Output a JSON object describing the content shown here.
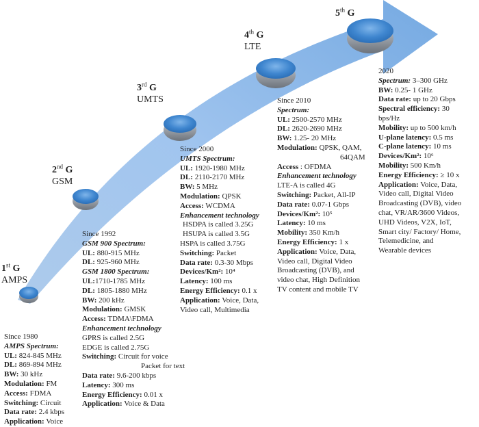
{
  "generations": [
    {
      "num": "1",
      "suffix": "st",
      "g": "G",
      "tech": "AMPS",
      "since": "Since 1980",
      "lines": [
        {
          "i": "AMPS Spectrum:"
        },
        {
          "l": "UL:",
          "v": " 824-845 MHz"
        },
        {
          "l": "DL:",
          "v": " 869-894 MHz"
        },
        {
          "l": "BW:",
          "v": " 30 kHz"
        },
        {
          "l": "Modulation:",
          "v": " FM"
        },
        {
          "l": "Access:",
          "v": " FDMA"
        },
        {
          "l": "Switching:",
          "v": " Circuit"
        },
        {
          "l": "Data rate:",
          "v": " 2.4 kbps"
        },
        {
          "l": "Application:",
          "v": " Voice"
        }
      ]
    },
    {
      "num": "2",
      "suffix": "nd",
      "g": "G",
      "tech": "GSM",
      "since": "Since 1992",
      "lines": [
        {
          "i": "GSM 900 Spectrum:"
        },
        {
          "l": "UL:",
          "v": " 880-915 MHz"
        },
        {
          "l": "DL:",
          "v": " 925-960 MHz"
        },
        {
          "i": "GSM 1800 Spectrum:"
        },
        {
          "l": "UL:",
          "v": "1710-1785 MHz"
        },
        {
          "l": "DL:",
          "v": " 1805-1880 MHz"
        },
        {
          "l": "BW:",
          "v": " 200 kHz"
        },
        {
          "l": "Modulation:",
          "v": " GMSK"
        },
        {
          "l": "Access:",
          "v": " TDMA\\FDMA"
        },
        {
          "i": "Enhancement technology"
        },
        {
          "t": "GPRS is called 2.5G"
        },
        {
          "t": "EDGE is called 2.75G"
        },
        {
          "l": "Switching:",
          "v": " Circuit for voice"
        },
        {
          "t": "Packet for text",
          "pad": 86
        },
        {
          "l": "Data rate:",
          "v": " 9.6-200 kbps"
        },
        {
          "l": "Latency:",
          "v": " 300 ms"
        },
        {
          "l": "Energy Efficiency:",
          "v": " 0.01 x"
        },
        {
          "l": "Application:",
          "v": " Voice & Data"
        }
      ]
    },
    {
      "num": "3",
      "suffix": "rd",
      "g": "G",
      "tech": "UMTS",
      "since": "Since 2000",
      "lines": [
        {
          "i": "UMTS Spectrum:"
        },
        {
          "l": "UL:",
          "v": " 1920-1980 MHz"
        },
        {
          "l": "DL:",
          "v": " 2110-2170 MHz"
        },
        {
          "l": "BW:",
          "v": " 5 MHz"
        },
        {
          "l": "Modulation:",
          "v": " QPSK"
        },
        {
          "l": "Access:",
          "v": " WCDMA"
        },
        {
          "i": "Enhancement technology"
        },
        {
          "t": "HSDPA is called 3.25G",
          "pad": 4
        },
        {
          "t": "HSUPA is called 3.5G",
          "pad": 4
        },
        {
          "t": "HSPA is called 3.75G"
        },
        {
          "l": "Switching:",
          "v": " Packet"
        },
        {
          "l": "Data rate:",
          "v": " 0.3-30 Mbps"
        },
        {
          "l": "Devices/Km²:",
          "v": " 10⁴"
        },
        {
          "l": "Latency:",
          "v": " 100 ms"
        },
        {
          "l": "Energy Efficiency:",
          "v": " 0.1 x"
        },
        {
          "l": "Application:",
          "v": " Voice, Data,"
        },
        {
          "t": "Video call, Multimedia"
        }
      ]
    },
    {
      "num": "4",
      "suffix": "th",
      "g": "G",
      "tech": "LTE",
      "since": "Since 2010",
      "lines": [
        {
          "i": "Spectrum:"
        },
        {
          "l": "UL:",
          "v": " 2500-2570 MHz"
        },
        {
          "l": "DL:",
          "v": " 2620-2690 MHz"
        },
        {
          "l": "BW:",
          "v": " 1.25- 20 MHz"
        },
        {
          "l": "Modulation:",
          "v": " QPSK, QAM,"
        },
        {
          "t": "64QAM",
          "pad": 92
        },
        {
          "l": "Access",
          "v": " : OFDMA"
        },
        {
          "i": "Enhancement technology"
        },
        {
          "t": "LTE-A is called 4G"
        },
        {
          "l": "Switching:",
          "v": " Packet, All-IP"
        },
        {
          "l": "Data rate:",
          "v": " 0.07-1 Gbps"
        },
        {
          "l": "Devices/Km²:",
          "v": " 10⁵"
        },
        {
          "l": "Latency:",
          "v": " 10 ms"
        },
        {
          "l": "Mobility:",
          "v": " 350 Km/h"
        },
        {
          "l": "Energy Efficiency:",
          "v": " 1 x"
        },
        {
          "l": "Application:",
          "v": " Voice, Data,"
        },
        {
          "t": "Video call, Digital Video"
        },
        {
          "t": "Broadcasting (DVB), and"
        },
        {
          "t": "video chat, High Definition"
        },
        {
          "t": "TV content and mobile TV"
        }
      ]
    },
    {
      "num": "5",
      "suffix": "th",
      "g": "G",
      "tech": "",
      "since": "2020",
      "lines": [
        {
          "i": "Spectrum:",
          "v": " 3–300 GHz"
        },
        {
          "l": "BW:",
          "v": " 0.25- 1 GHz"
        },
        {
          "l": "Data rate:",
          "v": " up to 20 Gbps"
        },
        {
          "l": "Spectral efficiency:",
          "v": " 30"
        },
        {
          "t": "bps/Hz"
        },
        {
          "l": "Mobility:",
          "v": " up to 500 km/h"
        },
        {
          "l": "U-plane latency:",
          "v": " 0.5 ms"
        },
        {
          "l": "C-plane latency:",
          "v": " 10 ms"
        },
        {
          "l": "Devices/Km²:",
          "v": " 10⁶"
        },
        {
          "l": "Mobility:",
          "v": " 500 Km/h"
        },
        {
          "l": "Energy Efficiency:",
          "v": " ≥ 10 x"
        },
        {
          "l": "Application:",
          "v": " Voice, Data,"
        },
        {
          "t": "Video call, Digital Video"
        },
        {
          "t": "Broadcasting (DVB), video"
        },
        {
          "t": "chat, VR/AR/3600 Videos,"
        },
        {
          "t": "UHD Videos, V2X, IoT,"
        },
        {
          "t": "Smart city/ Factory/ Home,"
        },
        {
          "t": "Telemedicine, and"
        },
        {
          "t": "Wearable devices"
        }
      ]
    }
  ]
}
